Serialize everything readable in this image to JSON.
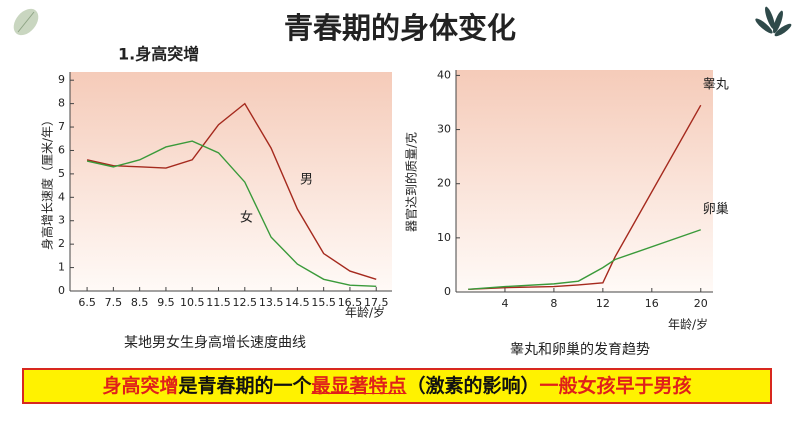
{
  "slide": {
    "title": "青春期的身体变化",
    "subtitle": "1.身高突增",
    "banner": [
      "身高突增",
      "是青春期的一个",
      "最显著特点",
      "（激素的影响）",
      "一般女孩早于男孩"
    ]
  },
  "chart_data": [
    {
      "type": "line",
      "caption": "某地男女生身高增长速度曲线",
      "y_label": "身高增长速度（厘米/年）",
      "x_label": "年龄/岁",
      "x": [
        6.5,
        7.5,
        8.5,
        9.5,
        10.5,
        11.5,
        12.5,
        13.5,
        14.5,
        15.5,
        16.5,
        17.5
      ],
      "series": [
        {
          "name": "男",
          "color": "#a52a1e",
          "values": [
            5.6,
            5.35,
            5.3,
            5.25,
            5.6,
            7.1,
            8.0,
            6.1,
            3.5,
            1.6,
            0.85,
            0.5
          ]
        },
        {
          "name": "女",
          "color": "#3a9a3a",
          "values": [
            5.55,
            5.3,
            5.6,
            6.15,
            6.4,
            5.9,
            4.65,
            2.3,
            1.15,
            0.5,
            0.25,
            0.2
          ]
        }
      ],
      "xlim": [
        5.85,
        18.1
      ],
      "xticks": [
        6.5,
        7.5,
        8.5,
        9.5,
        10.5,
        11.5,
        12.5,
        13.5,
        14.5,
        15.5,
        16.5,
        17.5
      ],
      "ylim": [
        0,
        9.35
      ],
      "yticks": [
        0,
        1,
        2,
        3,
        4,
        5,
        6,
        7,
        8,
        9
      ]
    },
    {
      "type": "line",
      "caption": "睾丸和卵巢的发育趋势",
      "y_label": "器官达到的质量/克",
      "x_label": "年龄/岁",
      "x": [
        1,
        4,
        8,
        10,
        12,
        13,
        20
      ],
      "series": [
        {
          "name": "睾丸",
          "color": "#a52a1e",
          "values": [
            0.5,
            0.8,
            1,
            1.3,
            1.7,
            6.5,
            34.5
          ]
        },
        {
          "name": "卵巢",
          "color": "#3a9a3a",
          "values": [
            0.5,
            1,
            1.5,
            2,
            4.5,
            6,
            11.5
          ]
        }
      ],
      "xlim": [
        0,
        21
      ],
      "xticks": [
        4,
        8,
        12,
        16,
        20
      ],
      "ylim": [
        0,
        41
      ],
      "yticks": [
        0,
        10,
        20,
        30,
        40
      ]
    }
  ]
}
